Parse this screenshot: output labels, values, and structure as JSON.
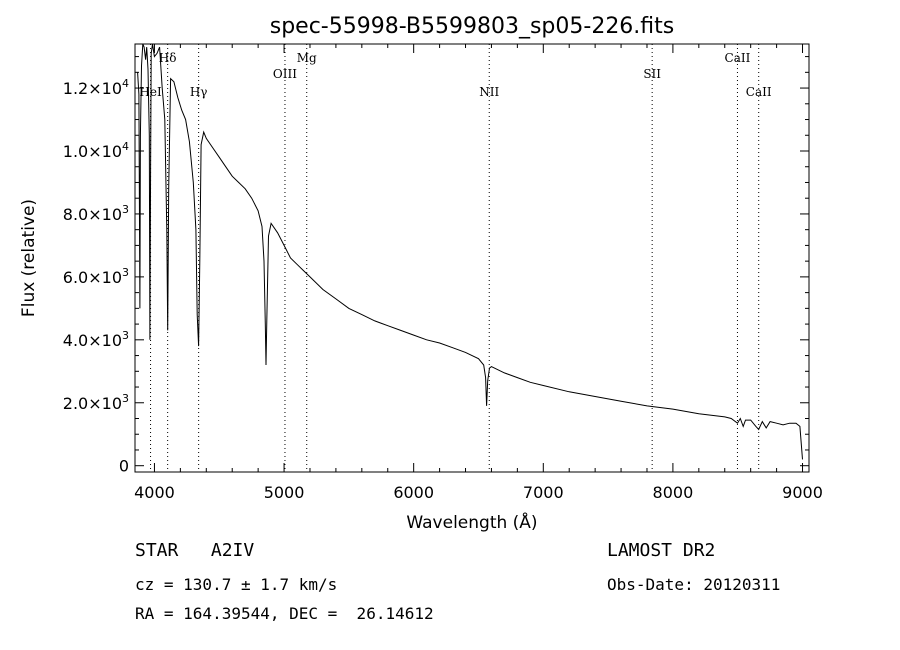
{
  "chart_data": {
    "type": "line",
    "title": "spec-55998-B5599803_sp05-226.fits",
    "xlabel": "Wavelength (Å)",
    "ylabel": "Flux (relative)",
    "xlim": [
      3850,
      9050
    ],
    "ylim": [
      -200,
      13400
    ],
    "grid": false,
    "x_ticks": [
      {
        "value": 4000,
        "label": "4000"
      },
      {
        "value": 5000,
        "label": "5000"
      },
      {
        "value": 6000,
        "label": "6000"
      },
      {
        "value": 7000,
        "label": "7000"
      },
      {
        "value": 8000,
        "label": "8000"
      },
      {
        "value": 9000,
        "label": "9000"
      }
    ],
    "y_ticks": [
      {
        "value": 0,
        "label": "0"
      },
      {
        "value": 2000,
        "label": "2.0×10",
        "exp": "3"
      },
      {
        "value": 4000,
        "label": "4.0×10",
        "exp": "3"
      },
      {
        "value": 6000,
        "label": "6.0×10",
        "exp": "3"
      },
      {
        "value": 8000,
        "label": "8.0×10",
        "exp": "3"
      },
      {
        "value": 10000,
        "label": "1.0×10",
        "exp": "4"
      },
      {
        "value": 12000,
        "label": "1.2×10",
        "exp": "4"
      }
    ],
    "spectral_lines": [
      {
        "label": "HeI",
        "x": 3970,
        "row": "low"
      },
      {
        "label": "Hδ",
        "x": 4102,
        "row": "high"
      },
      {
        "label": "Hγ",
        "x": 4341,
        "row": "low"
      },
      {
        "label": "OIII",
        "x": 5007,
        "row": "mid"
      },
      {
        "label": "Mg",
        "x": 5175,
        "row": "high"
      },
      {
        "label": "NII",
        "x": 6583,
        "row": "low"
      },
      {
        "label": "SII",
        "x": 7840,
        "row": "mid"
      },
      {
        "label": "CaII",
        "x": 8498,
        "row": "high"
      },
      {
        "label": "CaII",
        "x": 8662,
        "row": "low"
      }
    ],
    "series": [
      {
        "x": [
          3870,
          3880,
          3888,
          3892,
          3900,
          3910,
          3920,
          3932,
          3940,
          3950,
          3960,
          3965,
          3970,
          3975,
          3985,
          4000,
          4020,
          4040,
          4060,
          4080,
          4095,
          4102,
          4110,
          4125,
          4150,
          4180,
          4210,
          4240,
          4270,
          4300,
          4320,
          4330,
          4341,
          4350,
          4360,
          4380,
          4400,
          4450,
          4500,
          4550,
          4600,
          4650,
          4700,
          4750,
          4800,
          4830,
          4845,
          4855,
          4861,
          4867,
          4880,
          4900,
          4950,
          5000,
          5050,
          5100,
          5150,
          5200,
          5300,
          5400,
          5500,
          5600,
          5700,
          5800,
          5900,
          6000,
          6100,
          6200,
          6300,
          6400,
          6500,
          6540,
          6555,
          6563,
          6571,
          6585,
          6600,
          6700,
          6800,
          6900,
          7000,
          7200,
          7400,
          7600,
          7800,
          8000,
          8200,
          8400,
          8450,
          8498,
          8520,
          8542,
          8560,
          8600,
          8640,
          8662,
          8690,
          8720,
          8750,
          8800,
          8850,
          8900,
          8950,
          8980,
          9000
        ],
        "y": [
          12500,
          11800,
          5000,
          10500,
          12700,
          13400,
          13300,
          12900,
          13300,
          12600,
          10500,
          4000,
          9500,
          13100,
          13400,
          13000,
          13100,
          13300,
          12000,
          11000,
          7500,
          4300,
          8800,
          12300,
          12200,
          11700,
          11300,
          11000,
          10300,
          9000,
          7500,
          4800,
          3800,
          6500,
          10200,
          10600,
          10400,
          10100,
          9800,
          9500,
          9200,
          9000,
          8800,
          8500,
          8100,
          7600,
          6500,
          4500,
          3200,
          4600,
          7300,
          7700,
          7400,
          7000,
          6600,
          6400,
          6200,
          6000,
          5600,
          5300,
          5000,
          4800,
          4600,
          4450,
          4300,
          4150,
          4000,
          3900,
          3750,
          3600,
          3400,
          3200,
          2800,
          1900,
          2700,
          3100,
          3150,
          2950,
          2800,
          2650,
          2550,
          2350,
          2200,
          2050,
          1900,
          1800,
          1650,
          1550,
          1500,
          1350,
          1500,
          1250,
          1450,
          1450,
          1250,
          1150,
          1400,
          1200,
          1400,
          1350,
          1300,
          1350,
          1350,
          1250,
          200
        ]
      }
    ]
  },
  "info": {
    "left_line1": "STAR   A2IV",
    "left_line2": "cz = 130.7 ± 1.7 km/s",
    "left_line3": "RA = 164.39544, DEC =  26.14612",
    "right_line1": "LAMOST DR2",
    "right_line2": "Obs-Date: 20120311"
  }
}
